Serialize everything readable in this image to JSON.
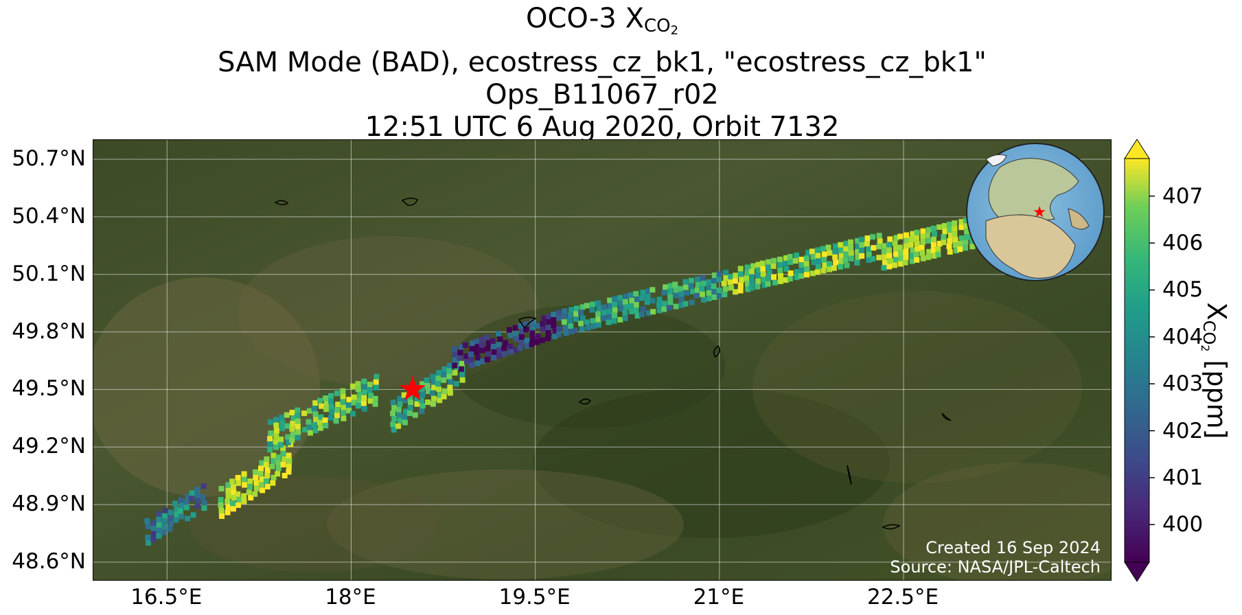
{
  "title": {
    "line1_prefix": "OCO-3 X",
    "line1_sub": "CO",
    "line1_subsub": "2",
    "line2": "SAM Mode (BAD), ecostress_cz_bk1, \"ecostress_cz_bk1\"",
    "line3": "Ops_B11067_r02",
    "line4": "12:51 UTC 6 Aug 2020, Orbit 7132"
  },
  "map": {
    "lon_range": [
      15.9,
      24.2
    ],
    "lat_range": [
      48.5,
      50.8
    ],
    "lat_ticks": [
      {
        "value": 50.7,
        "label": "50.7°N"
      },
      {
        "value": 50.4,
        "label": "50.4°N"
      },
      {
        "value": 50.1,
        "label": "50.1°N"
      },
      {
        "value": 49.8,
        "label": "49.8°N"
      },
      {
        "value": 49.5,
        "label": "49.5°N"
      },
      {
        "value": 49.2,
        "label": "49.2°N"
      },
      {
        "value": 48.9,
        "label": "48.9°N"
      },
      {
        "value": 48.6,
        "label": "48.6°N"
      }
    ],
    "lon_ticks": [
      {
        "value": 16.5,
        "label": "16.5°E"
      },
      {
        "value": 18.0,
        "label": "18°E"
      },
      {
        "value": 19.5,
        "label": "19.5°E"
      },
      {
        "value": 21.0,
        "label": "21°E"
      },
      {
        "value": 22.5,
        "label": "22.5°E"
      }
    ],
    "target_marker": {
      "lon": 18.5,
      "lat": 49.5,
      "symbol": "star",
      "color": "#ff0000"
    },
    "background": "satellite imagery",
    "gridlines": true
  },
  "chart_data": {
    "type": "heatmap",
    "variable": "XCO2",
    "units": "ppm",
    "colormap": "viridis",
    "colorbar_range": [
      399.2,
      407.8
    ],
    "colorbar_extend": "both",
    "colorbar_ticks": [
      400,
      401,
      402,
      403,
      404,
      405,
      406,
      407
    ],
    "swath_segments": [
      {
        "lon": [
          16.3,
          16.8
        ],
        "lat": [
          48.75,
          48.95
        ],
        "mean_xco2": 402.5
      },
      {
        "lon": [
          16.9,
          17.5
        ],
        "lat": [
          48.9,
          49.15
        ],
        "mean_xco2": 407.0
      },
      {
        "lon": [
          17.3,
          18.2
        ],
        "lat": [
          49.25,
          49.5
        ],
        "mean_xco2": 405.5
      },
      {
        "lon": [
          18.3,
          18.9
        ],
        "lat": [
          49.35,
          49.6
        ],
        "mean_xco2": 405.0
      },
      {
        "lon": [
          18.8,
          19.7
        ],
        "lat": [
          49.65,
          49.85
        ],
        "mean_xco2": 400.5
      },
      {
        "lon": [
          19.7,
          21.0
        ],
        "lat": [
          49.85,
          50.05
        ],
        "mean_xco2": 404.0
      },
      {
        "lon": [
          21.0,
          22.3
        ],
        "lat": [
          50.05,
          50.25
        ],
        "mean_xco2": 405.8
      },
      {
        "lon": [
          22.3,
          23.9
        ],
        "lat": [
          50.2,
          50.45
        ],
        "mean_xco2": 406.5
      }
    ]
  },
  "colorbar": {
    "title_prefix": "X",
    "title_sub": "CO",
    "title_subsub": "2",
    "title_suffix": " [ppm]",
    "tick_labels": [
      "400",
      "401",
      "402",
      "403",
      "404",
      "405",
      "406",
      "407"
    ]
  },
  "credits": {
    "created": "Created 16 Sep 2024",
    "source": "Source: NASA/JPL-Caltech"
  }
}
